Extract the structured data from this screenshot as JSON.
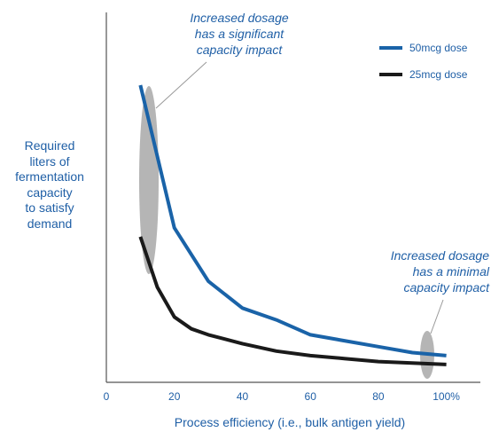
{
  "chart_data": {
    "type": "line",
    "xlabel": "Process efficiency (i.e., bulk antigen yield)",
    "ylabel_lines": [
      "Required",
      "liters of",
      "fermentation",
      "capacity",
      "to satisfy",
      "demand"
    ],
    "x_ticks": [
      "0",
      "20",
      "40",
      "60",
      "80",
      "100%"
    ],
    "xlim": [
      0,
      110
    ],
    "ylim": [
      0,
      100
    ],
    "y_ticks_shown": false,
    "grid": false,
    "legend_position": "top-right",
    "series": [
      {
        "name": "50mcg dose",
        "color": "#1a63a8",
        "x": [
          10,
          20,
          30,
          40,
          50,
          60,
          70,
          80,
          90,
          100
        ],
        "y": [
          100,
          52,
          34,
          25,
          21,
          16,
          14,
          12,
          10,
          9
        ]
      },
      {
        "name": "25mcg dose",
        "color": "#1a1a1a",
        "x": [
          10,
          15,
          20,
          25,
          30,
          40,
          50,
          60,
          70,
          80,
          100
        ],
        "y": [
          49,
          32,
          22,
          18,
          16,
          13,
          10.5,
          9,
          8,
          7,
          6
        ]
      }
    ],
    "annotations": [
      {
        "lines": [
          "Increased dosage",
          "has a significant",
          "capacity impact"
        ],
        "target_x": 12
      },
      {
        "lines": [
          "Increased dosage",
          "has a minimal",
          "capacity impact"
        ],
        "target_x": 95
      }
    ]
  }
}
